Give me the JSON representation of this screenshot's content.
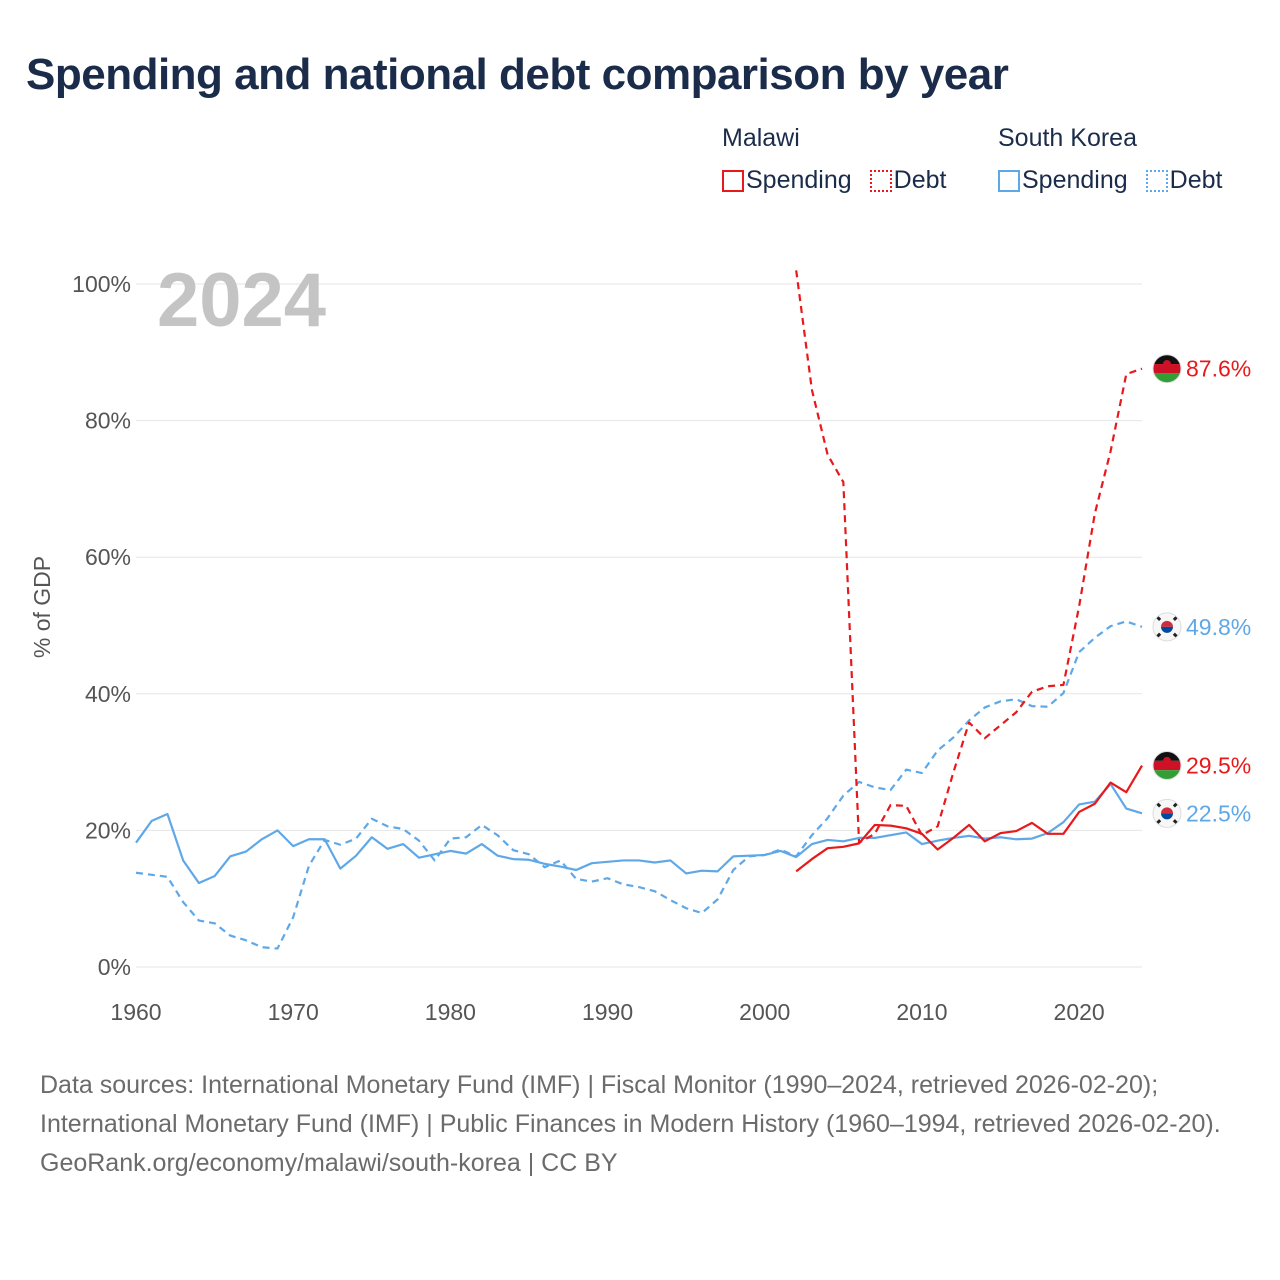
{
  "title": "Spending and national debt comparison by year",
  "legend": {
    "groups": [
      {
        "name": "Malawi",
        "color": "#e8191b",
        "spending_label": "Spending",
        "debt_label": "Debt"
      },
      {
        "name": "South Korea",
        "color": "#5fa8e8",
        "spending_label": "Spending",
        "debt_label": "Debt"
      }
    ]
  },
  "chart_data": {
    "type": "line",
    "year_label": "2024",
    "ylabel": "% of GDP",
    "xlim": [
      1960,
      2024
    ],
    "ylim": [
      0,
      100
    ],
    "x_ticks": [
      1960,
      1970,
      1980,
      1990,
      2000,
      2010,
      2020
    ],
    "y_ticks": [
      {
        "value": 0,
        "label": "0%"
      },
      {
        "value": 20,
        "label": "20%"
      },
      {
        "value": 40,
        "label": "40%"
      },
      {
        "value": 60,
        "label": "60%"
      },
      {
        "value": 80,
        "label": "80%"
      },
      {
        "value": 100,
        "label": "100%"
      }
    ],
    "series": [
      {
        "name": "South Korea Debt",
        "country": "South Korea",
        "kind": "debt",
        "color": "#5fa8e8",
        "dashed": true,
        "start": 1960,
        "values": [
          13.8,
          13.5,
          13.2,
          9.5,
          6.8,
          6.4,
          4.6,
          3.9,
          2.9,
          2.7,
          7.3,
          14.8,
          18.6,
          17.9,
          18.8,
          21.7,
          20.6,
          20.2,
          18.5,
          15.6,
          18.8,
          19.0,
          20.8,
          19.3,
          17.1,
          16.5,
          14.6,
          15.6,
          12.9,
          12.5,
          13.0,
          12.1,
          11.7,
          11.1,
          9.8,
          8.6,
          7.9,
          9.9,
          14.2,
          16.2,
          16.4,
          17.2,
          16.2,
          19.3,
          21.8,
          25.1,
          27.1,
          26.3,
          25.9,
          28.9,
          28.4,
          31.7,
          33.6,
          36.1,
          38.0,
          38.9,
          39.2,
          38.2,
          38.1,
          40.1,
          46.1,
          48.2,
          49.9,
          50.6,
          49.8
        ]
      },
      {
        "name": "South Korea Spending",
        "country": "South Korea",
        "kind": "spending",
        "color": "#5fa8e8",
        "dashed": false,
        "start": 1960,
        "values": [
          18.2,
          21.4,
          22.4,
          15.6,
          12.3,
          13.3,
          16.2,
          16.9,
          18.7,
          20.0,
          17.7,
          18.7,
          18.7,
          14.4,
          16.3,
          19.0,
          17.3,
          18.0,
          16.0,
          16.5,
          17.0,
          16.6,
          18.0,
          16.3,
          15.8,
          15.7,
          15.1,
          14.7,
          14.2,
          15.2,
          15.4,
          15.6,
          15.6,
          15.3,
          15.6,
          13.7,
          14.1,
          14.0,
          16.2,
          16.3,
          16.4,
          17.0,
          16.1,
          18.0,
          18.6,
          18.4,
          18.9,
          18.9,
          19.3,
          19.7,
          18.0,
          18.5,
          18.9,
          19.2,
          18.8,
          19.0,
          18.7,
          18.8,
          19.6,
          21.2,
          23.8,
          24.2,
          26.8,
          23.2,
          22.5
        ]
      },
      {
        "name": "Malawi Debt",
        "country": "Malawi",
        "kind": "debt",
        "color": "#e8191b",
        "dashed": true,
        "start": 2002,
        "values": [
          102.0,
          84.5,
          75.0,
          71.0,
          18.2,
          19.5,
          23.7,
          23.6,
          19.3,
          20.6,
          28.5,
          35.8,
          33.5,
          35.4,
          37.3,
          40.3,
          41.1,
          41.3,
          52.8,
          66.4,
          75.5,
          86.8,
          87.6
        ]
      },
      {
        "name": "Malawi Spending",
        "country": "Malawi",
        "kind": "spending",
        "color": "#e8191b",
        "dashed": false,
        "start": 2002,
        "values": [
          14.0,
          15.8,
          17.4,
          17.6,
          18.1,
          20.8,
          20.7,
          20.3,
          19.5,
          17.2,
          18.9,
          20.8,
          18.4,
          19.6,
          19.9,
          21.1,
          19.5,
          19.5,
          22.7,
          23.9,
          27.0,
          25.6,
          29.5
        ]
      }
    ],
    "end_labels": [
      {
        "series": "Malawi Debt",
        "label": "87.6%",
        "flag": "malawi-flag-icon"
      },
      {
        "series": "South Korea Debt",
        "label": "49.8%",
        "flag": "south-korea-flag-icon"
      },
      {
        "series": "Malawi Spending",
        "label": "29.5%",
        "flag": "malawi-flag-icon"
      },
      {
        "series": "South Korea Spending",
        "label": "22.5%",
        "flag": "south-korea-flag-icon"
      }
    ]
  },
  "footer": {
    "source_line": "Data sources: International Monetary Fund (IMF) | Fiscal Monitor (1990–2024, retrieved 2026-02-20); International Monetary Fund (IMF) | Public Finances in Modern History (1960–1994, retrieved 2026-02-20).",
    "credit": "GeoRank.org/economy/malawi/south-korea | CC BY"
  }
}
